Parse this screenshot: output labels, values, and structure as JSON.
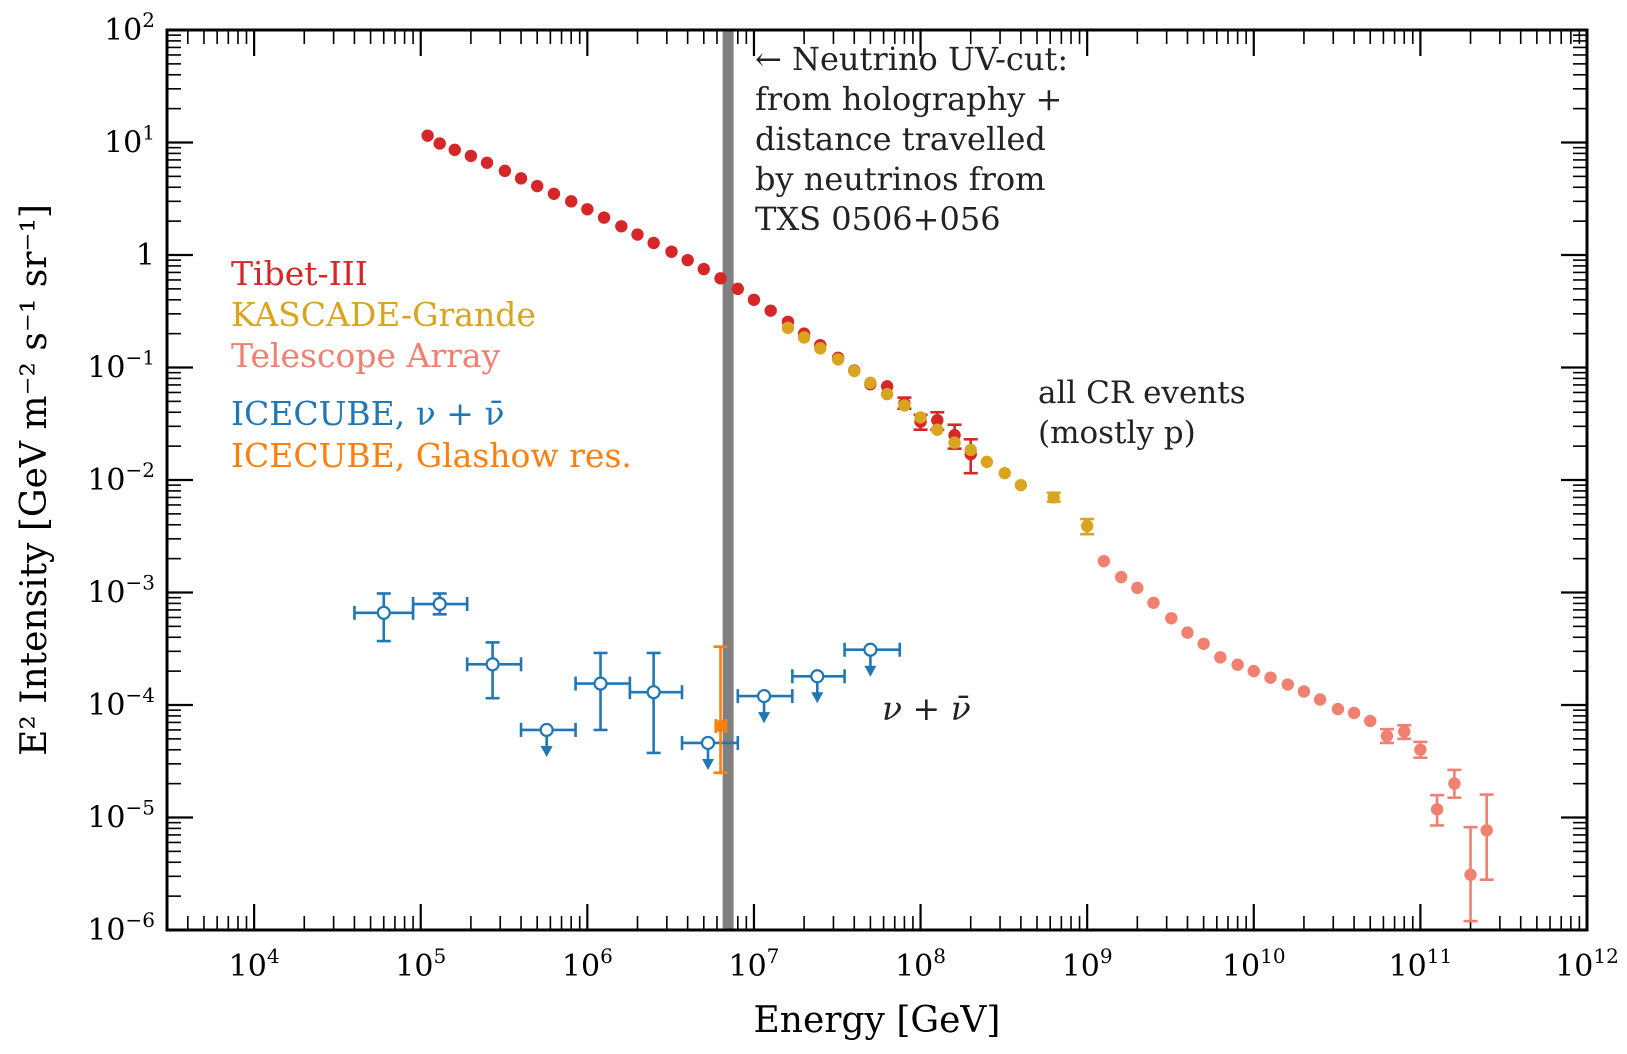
{
  "chart_data": {
    "type": "scatter",
    "title": "",
    "xlabel": "Energy [GeV]",
    "ylabel": "E² Intensity [GeV m⁻² s⁻¹ sr⁻¹]",
    "xscale": "log",
    "yscale": "log",
    "xlim": [
      3000,
      1000000000000
    ],
    "ylim": [
      1e-06,
      100
    ],
    "x_ticks": [
      {
        "value": 10000,
        "base": "10",
        "exp": "4"
      },
      {
        "value": 100000,
        "base": "10",
        "exp": "5"
      },
      {
        "value": 1000000,
        "base": "10",
        "exp": "6"
      },
      {
        "value": 10000000,
        "base": "10",
        "exp": "7"
      },
      {
        "value": 100000000,
        "base": "10",
        "exp": "8"
      },
      {
        "value": 1000000000,
        "base": "10",
        "exp": "9"
      },
      {
        "value": 10000000000,
        "base": "10",
        "exp": "10"
      },
      {
        "value": 100000000000,
        "base": "10",
        "exp": "11"
      },
      {
        "value": 1000000000000,
        "base": "10",
        "exp": "12"
      }
    ],
    "y_ticks": [
      {
        "value": 100,
        "base": "10",
        "exp": "2"
      },
      {
        "value": 10,
        "base": "10",
        "exp": "1"
      },
      {
        "value": 1,
        "base": "1",
        "exp": ""
      },
      {
        "value": 0.1,
        "base": "10",
        "exp": "−1"
      },
      {
        "value": 0.01,
        "base": "10",
        "exp": "−2"
      },
      {
        "value": 0.001,
        "base": "10",
        "exp": "−3"
      },
      {
        "value": 0.0001,
        "base": "10",
        "exp": "−4"
      },
      {
        "value": 1e-05,
        "base": "10",
        "exp": "−5"
      },
      {
        "value": 1e-06,
        "base": "10",
        "exp": "−6"
      }
    ],
    "vertical_line": {
      "x": 7000000,
      "color": "#808080"
    },
    "series": [
      {
        "name": "Tibet-III",
        "color": "#d62728",
        "marker": "filled",
        "points": [
          {
            "x": 110000,
            "y": 11.5
          },
          {
            "x": 130000,
            "y": 9.8
          },
          {
            "x": 160000,
            "y": 8.6
          },
          {
            "x": 200000,
            "y": 7.6
          },
          {
            "x": 250000,
            "y": 6.6
          },
          {
            "x": 320000,
            "y": 5.6
          },
          {
            "x": 400000,
            "y": 4.8
          },
          {
            "x": 500000,
            "y": 4.1
          },
          {
            "x": 630000,
            "y": 3.5
          },
          {
            "x": 800000,
            "y": 3.0
          },
          {
            "x": 1000000,
            "y": 2.55
          },
          {
            "x": 1260000,
            "y": 2.15
          },
          {
            "x": 1600000,
            "y": 1.8
          },
          {
            "x": 2000000,
            "y": 1.52
          },
          {
            "x": 2500000,
            "y": 1.28
          },
          {
            "x": 3200000,
            "y": 1.07
          },
          {
            "x": 4000000,
            "y": 0.9
          },
          {
            "x": 5000000,
            "y": 0.75
          },
          {
            "x": 6300000,
            "y": 0.62
          },
          {
            "x": 8000000,
            "y": 0.5
          },
          {
            "x": 10000000,
            "y": 0.4
          },
          {
            "x": 12600000,
            "y": 0.32
          },
          {
            "x": 16000000,
            "y": 0.255
          },
          {
            "x": 20000000,
            "y": 0.2
          },
          {
            "x": 25000000,
            "y": 0.158
          },
          {
            "x": 32000000,
            "y": 0.122
          },
          {
            "x": 40000000,
            "y": 0.094
          },
          {
            "x": 50000000,
            "y": 0.071
          },
          {
            "x": 63000000,
            "y": 0.068
          },
          {
            "x": 80000000,
            "y": 0.048,
            "yerr": [
              0.043,
              0.054
            ]
          },
          {
            "x": 100000000,
            "y": 0.033,
            "yerr": [
              0.028,
              0.038
            ]
          },
          {
            "x": 126000000,
            "y": 0.034,
            "yerr": [
              0.028,
              0.04
            ]
          },
          {
            "x": 160000000,
            "y": 0.025,
            "yerr": [
              0.019,
              0.031
            ]
          },
          {
            "x": 200000000,
            "y": 0.017,
            "yerr": [
              0.0115,
              0.023
            ]
          }
        ]
      },
      {
        "name": "KASCADE-Grande",
        "color": "#d9a520",
        "marker": "filled",
        "points": [
          {
            "x": 16000000,
            "y": 0.225
          },
          {
            "x": 20000000,
            "y": 0.185
          },
          {
            "x": 25000000,
            "y": 0.148
          },
          {
            "x": 32000000,
            "y": 0.118
          },
          {
            "x": 40000000,
            "y": 0.093
          },
          {
            "x": 50000000,
            "y": 0.073
          },
          {
            "x": 63000000,
            "y": 0.058
          },
          {
            "x": 80000000,
            "y": 0.046
          },
          {
            "x": 100000000,
            "y": 0.036
          },
          {
            "x": 126000000,
            "y": 0.028
          },
          {
            "x": 160000000,
            "y": 0.0215
          },
          {
            "x": 200000000,
            "y": 0.0185
          },
          {
            "x": 250000000,
            "y": 0.0145
          },
          {
            "x": 320000000,
            "y": 0.0115
          },
          {
            "x": 400000000,
            "y": 0.009
          },
          {
            "x": 630000000,
            "y": 0.007,
            "yerr": [
              0.0064,
              0.0077
            ]
          },
          {
            "x": 1000000000,
            "y": 0.0039,
            "yerr": [
              0.0033,
              0.0045
            ]
          }
        ]
      },
      {
        "name": "Telescope Array",
        "color": "#f08070",
        "marker": "filled",
        "points": [
          {
            "x": 1260000000,
            "y": 0.0019
          },
          {
            "x": 1600000000,
            "y": 0.00137
          },
          {
            "x": 2000000000,
            "y": 0.0011
          },
          {
            "x": 2500000000,
            "y": 0.00081
          },
          {
            "x": 3200000000,
            "y": 0.00059
          },
          {
            "x": 4000000000,
            "y": 0.00044
          },
          {
            "x": 5000000000,
            "y": 0.00035
          },
          {
            "x": 6300000000,
            "y": 0.000265
          },
          {
            "x": 8000000000,
            "y": 0.000228
          },
          {
            "x": 10000000000,
            "y": 0.0002
          },
          {
            "x": 12600000000,
            "y": 0.000175
          },
          {
            "x": 16000000000,
            "y": 0.000152
          },
          {
            "x": 20000000000,
            "y": 0.000132
          },
          {
            "x": 25000000000,
            "y": 0.000112
          },
          {
            "x": 32000000000,
            "y": 9.2e-05
          },
          {
            "x": 40000000000,
            "y": 8.5e-05
          },
          {
            "x": 50000000000,
            "y": 7.2e-05
          },
          {
            "x": 63000000000,
            "y": 5.3e-05,
            "yerr": [
              4.6e-05,
              6.1e-05
            ]
          },
          {
            "x": 80000000000,
            "y": 5.8e-05,
            "yerr": [
              5e-05,
              6.6e-05
            ]
          },
          {
            "x": 100000000000,
            "y": 4e-05,
            "yerr": [
              3.4e-05,
              4.7e-05
            ]
          },
          {
            "x": 126000000000,
            "y": 1.18e-05,
            "yerr": [
              8.5e-06,
              1.58e-05
            ]
          },
          {
            "x": 160000000000,
            "y": 2e-05,
            "yerr": [
              1.5e-05,
              2.65e-05
            ]
          },
          {
            "x": 200000000000,
            "y": 3.1e-06,
            "yerr": [
              1.2e-06,
              8.2e-06
            ]
          },
          {
            "x": 250000000000,
            "y": 7.7e-06,
            "yerr": [
              2.8e-06,
              1.6e-05
            ]
          }
        ]
      },
      {
        "name": "ICECUBE, ν + ν̄",
        "color": "#1f77b4",
        "marker": "open",
        "points": [
          {
            "x": 60000,
            "y": 0.00066,
            "xerr": [
              40000,
              90000
            ],
            "yerr": [
              0.00037,
              0.00098
            ]
          },
          {
            "x": 130000,
            "y": 0.00079,
            "xerr": [
              90000,
              190000
            ],
            "yerr": [
              0.00064,
              0.00098
            ]
          },
          {
            "x": 270000,
            "y": 0.00023,
            "xerr": [
              190000,
              400000
            ],
            "yerr": [
              0.000115,
              0.00036
            ]
          },
          {
            "x": 570000,
            "y": 6e-05,
            "xerr": [
              400000,
              850000
            ],
            "upper_limit": true
          },
          {
            "x": 1200000,
            "y": 0.000155,
            "xerr": [
              850000,
              1800000
            ],
            "yerr": [
              6e-05,
              0.00029
            ]
          },
          {
            "x": 2500000,
            "y": 0.00013,
            "xerr": [
              1800000,
              3700000
            ],
            "yerr": [
              3.75e-05,
              0.00029
            ]
          },
          {
            "x": 5300000,
            "y": 4.6e-05,
            "xerr": [
              3700000,
              8000000
            ],
            "upper_limit": true
          },
          {
            "x": 11500000,
            "y": 0.00012,
            "xerr": [
              8000000,
              17000000
            ],
            "upper_limit": true
          },
          {
            "x": 24000000,
            "y": 0.00018,
            "xerr": [
              17000000,
              35000000
            ],
            "upper_limit": true
          },
          {
            "x": 50000000,
            "y": 0.00031,
            "xerr": [
              35000000,
              75000000
            ],
            "upper_limit": true
          }
        ]
      },
      {
        "name": "ICECUBE, Glashow res.",
        "color": "#ff7f0e",
        "marker": "filled",
        "points": [
          {
            "x": 6300000,
            "y": 6.5e-05,
            "xerr": [
              5900000,
              6800000
            ],
            "yerr": [
              2.5e-05,
              0.00033
            ]
          }
        ]
      }
    ],
    "legend": {
      "position": "left-center",
      "entries": [
        {
          "label": "Tibet-III",
          "color": "#d62728"
        },
        {
          "label": "KASCADE-Grande",
          "color": "#d9a520"
        },
        {
          "label": "Telescope Array",
          "color": "#f08070"
        },
        {
          "label": "ICECUBE, ν + ν̄",
          "color": "#1f77b4"
        },
        {
          "label": "ICECUBE, Glashow res.",
          "color": "#ff7f0e"
        }
      ]
    },
    "annotations": {
      "uv_cut": [
        "← Neutrino UV-cut:",
        "from holography +",
        "distance travelled",
        "by neutrinos from",
        "TXS 0506+056"
      ],
      "cr": [
        "all CR events",
        "(mostly p)"
      ],
      "nu": "ν + ν̄"
    }
  }
}
